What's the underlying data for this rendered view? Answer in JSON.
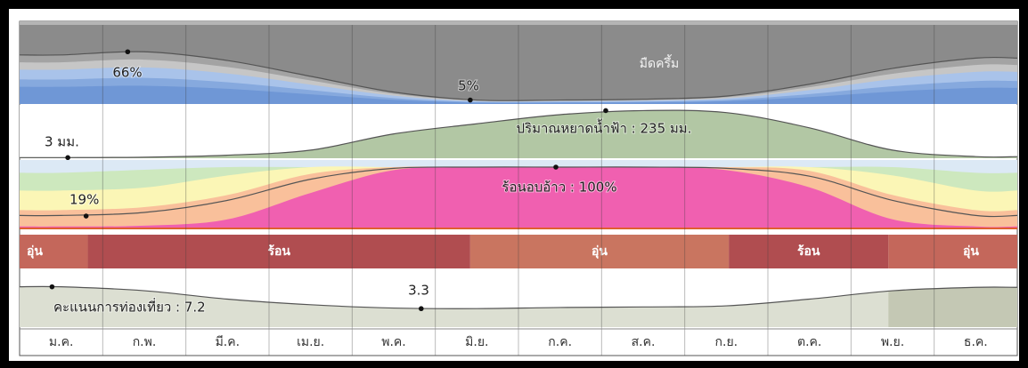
{
  "chart_data": {
    "type": "weather-summary",
    "months": [
      "ม.ค.",
      "ก.พ.",
      "มี.ค.",
      "เม.ย.",
      "พ.ค.",
      "มิ.ย.",
      "ก.ค.",
      "ส.ค.",
      "ก.ย.",
      "ต.ค.",
      "พ.ย.",
      "ธ.ค."
    ],
    "cloud": {
      "label": "มืดครึ้ม",
      "ylim": [
        0,
        100
      ],
      "values": [
        62,
        66,
        55,
        35,
        15,
        5,
        5,
        6,
        10,
        25,
        45,
        58
      ],
      "annotations": [
        {
          "x": 1.3,
          "value": 66,
          "label": "66%"
        },
        {
          "x": 5.42,
          "value": 5,
          "label": "5%"
        }
      ]
    },
    "rain": {
      "ylim": [
        0,
        250
      ],
      "color": "#b2c7a4",
      "values": [
        3,
        5,
        15,
        40,
        120,
        170,
        215,
        235,
        225,
        150,
        40,
        8
      ],
      "annotations": [
        {
          "x": 0.58,
          "value": 3,
          "label": "3 มม."
        },
        {
          "x": 7.05,
          "value": 235,
          "label": "ปริมาณหยาดน้ำฟ้า : 235 มม."
        }
      ]
    },
    "muggy": {
      "ylim": [
        0,
        100
      ],
      "color": "#f060b0",
      "values": [
        20,
        25,
        45,
        80,
        98,
        100,
        100,
        100,
        98,
        85,
        45,
        20
      ],
      "annotations": [
        {
          "x": 0.8,
          "value": 19,
          "label": "19%"
        },
        {
          "x": 6.45,
          "value": 100,
          "label": "ร้อนอบอ้าว : 100%"
        }
      ]
    },
    "temperature": {
      "segments": [
        {
          "label": "อุ่น",
          "start": 0,
          "end": 0.82,
          "color": "#c4675b"
        },
        {
          "label": "ร้อน",
          "start": 0.82,
          "end": 5.42,
          "color": "#b04d50"
        },
        {
          "label": "อุ่น",
          "start": 5.42,
          "end": 8.53,
          "color": "#c97560"
        },
        {
          "label": "ร้อน",
          "start": 8.53,
          "end": 10.45,
          "color": "#b04d50"
        },
        {
          "label": "อุ่น",
          "start": 10.45,
          "end": 12,
          "color": "#c4675b"
        }
      ]
    },
    "tourism": {
      "ylim": [
        0,
        10
      ],
      "color": "#dcdfd2",
      "values": [
        7.2,
        6.5,
        5,
        4,
        3.4,
        3.3,
        3.5,
        3.6,
        3.8,
        5,
        6.5,
        7.1
      ],
      "annotations": [
        {
          "x": 0.39,
          "value": 7.2,
          "label": "คะแนนการท่องเที่ยว : 7.2"
        },
        {
          "x": 4.83,
          "value": 3.3,
          "label": "3.3"
        }
      ]
    }
  }
}
